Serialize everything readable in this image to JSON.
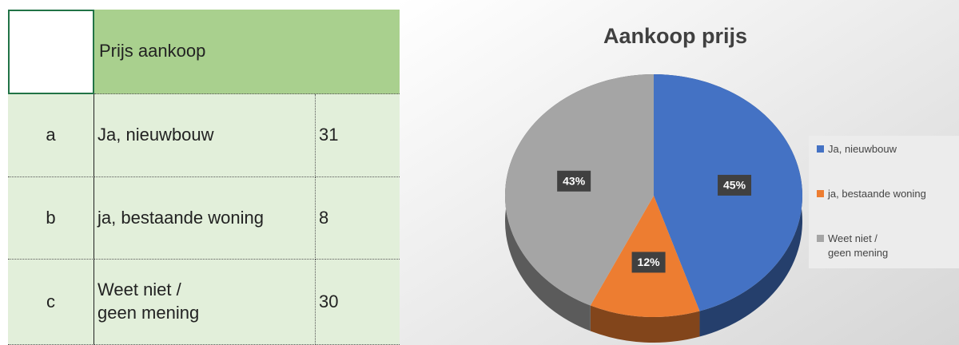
{
  "table": {
    "header": "Prijs aankoop",
    "rows": [
      [
        "a",
        "Ja, nieuwbouw",
        31
      ],
      [
        "b",
        "ja, bestaande woning",
        8
      ],
      [
        "c",
        "Weet niet /\ngeen mening",
        30
      ]
    ]
  },
  "chart_data": {
    "type": "pie",
    "title": "Aankoop prijs",
    "categories": [
      "Ja, nieuwbouw",
      "ja, bestaande woning",
      "Weet niet /\ngeen mening"
    ],
    "values": [
      45,
      12,
      43
    ],
    "value_labels": [
      "45%",
      "12%",
      "43%"
    ],
    "colors": [
      "#4472c4",
      "#ed7d31",
      "#a5a5a5"
    ],
    "legend": "right"
  }
}
